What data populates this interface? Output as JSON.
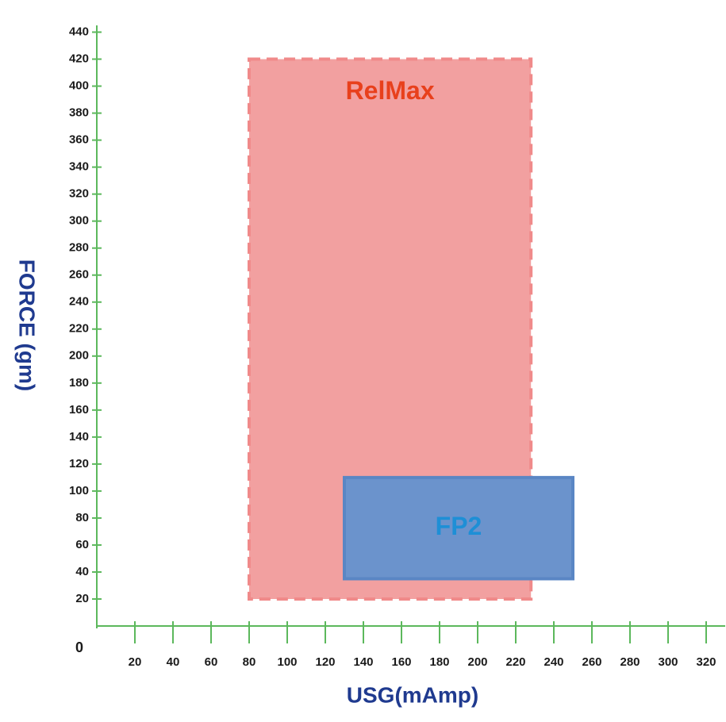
{
  "chart_data": {
    "type": "region",
    "x_label": "USG(mAmp)",
    "y_label": "FORCE (gm)",
    "xlim": [
      0,
      330
    ],
    "ylim": [
      0,
      445
    ],
    "xticks": [
      0,
      20,
      40,
      60,
      80,
      100,
      120,
      140,
      160,
      180,
      200,
      220,
      240,
      260,
      280,
      300,
      320
    ],
    "yticks": [
      20,
      40,
      60,
      80,
      100,
      120,
      140,
      160,
      180,
      200,
      220,
      240,
      260,
      280,
      300,
      320,
      340,
      360,
      380,
      400,
      420,
      440
    ],
    "axis_color": "#5cb85c",
    "regions": [
      {
        "name": "RelMax",
        "x": [
          80,
          228
        ],
        "y": [
          20,
          420
        ],
        "color": "#f2a0a0",
        "border_color": "#f08a8a",
        "dashed": true,
        "label_color": "#e8401c"
      },
      {
        "name": "FP2",
        "x": [
          130,
          250
        ],
        "y": [
          35,
          110
        ],
        "color": "#6b93cc",
        "border_color": "#5a86c4",
        "dashed": false,
        "label_color": "#1e8fd6"
      }
    ]
  }
}
